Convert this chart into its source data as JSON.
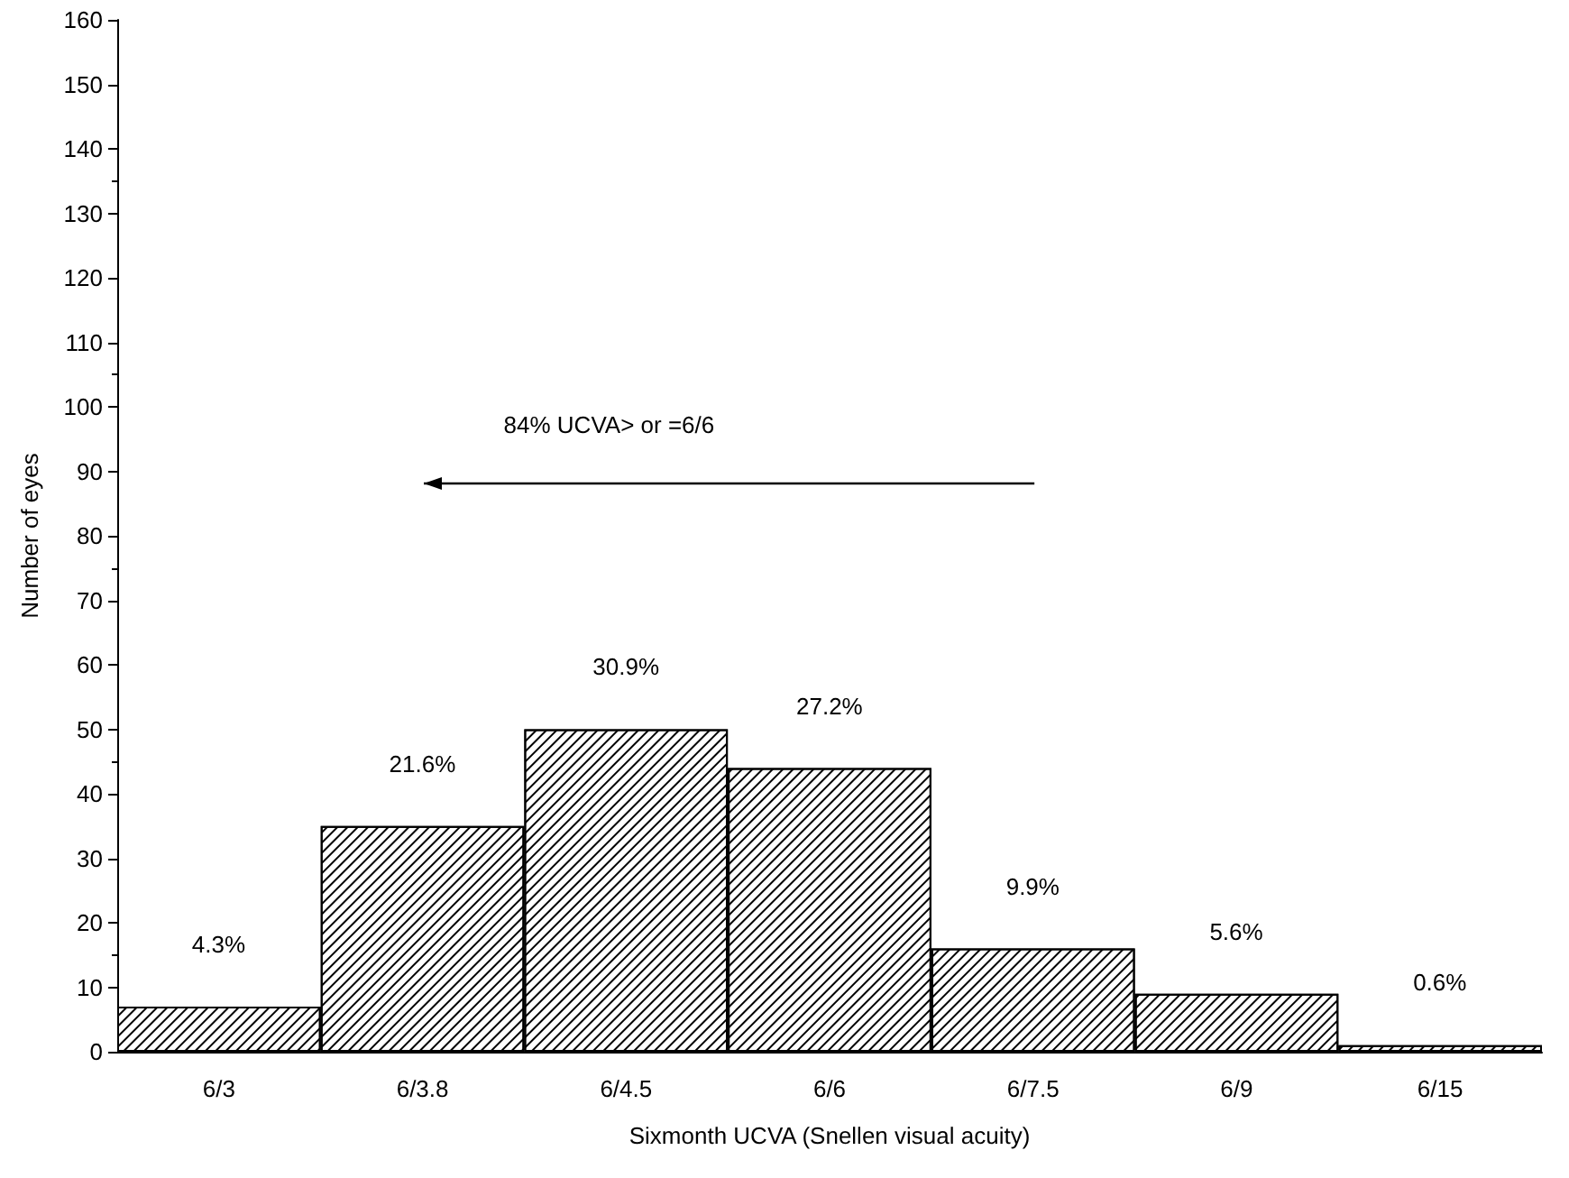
{
  "chart_data": {
    "type": "bar",
    "xlabel": "Sixmonth UCVA (Snellen visual acuity)",
    "ylabel": "Number of eyes",
    "categories": [
      "6/3",
      "6/3.8",
      "6/4.5",
      "6/6",
      "6/7.5",
      "6/9",
      "6/15"
    ],
    "values": [
      7,
      35,
      50,
      44,
      16,
      9,
      1
    ],
    "color": "#ffffff",
    "ylim": [
      0,
      160
    ],
    "yticks": [
      0,
      10,
      20,
      30,
      40,
      50,
      60,
      70,
      80,
      90,
      100,
      110,
      120,
      130,
      140,
      150,
      160
    ],
    "grid": false,
    "annotations": [
      "84% UCVA> or =6/6",
      {
        "text": "4.3%",
        "x": "6/3",
        "y": 7
      },
      {
        "text": "21.6%",
        "x": "6/3.8",
        "y": 35
      },
      {
        "text": "30.9%",
        "x": "6/4.5",
        "y": 50
      },
      {
        "text": "27.2%",
        "x": "6/6",
        "y": 44
      },
      {
        "text": "9.9%",
        "x": "6/7.5",
        "y": 16
      },
      {
        "text": "5.6%",
        "x": "6/9",
        "y": 9
      },
      {
        "text": "0.6%",
        "x": "6/15",
        "y": 1
      }
    ]
  }
}
